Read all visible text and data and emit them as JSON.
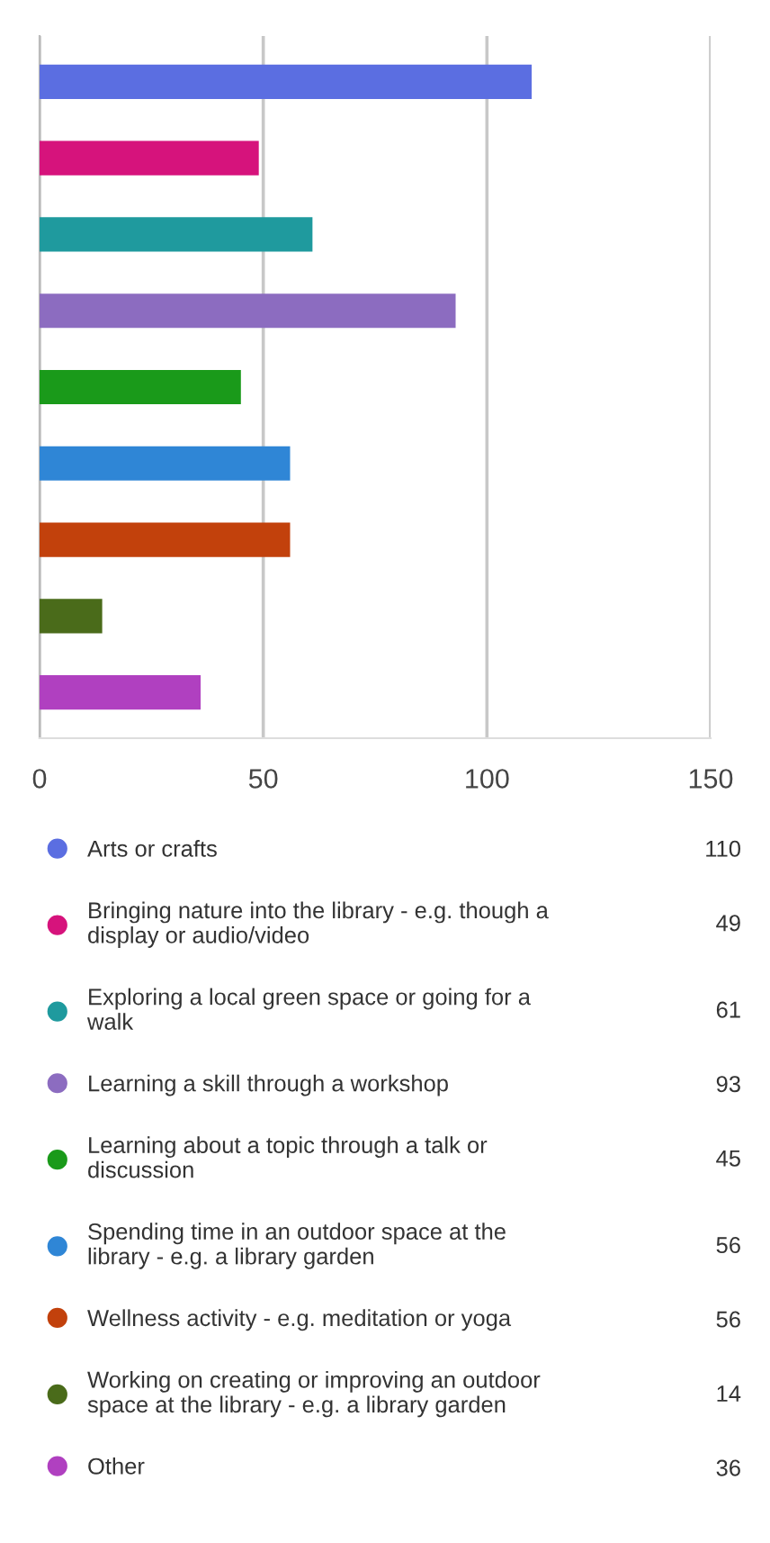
{
  "chart_data": {
    "type": "bar",
    "orientation": "horizontal",
    "stacked": true,
    "categories": [
      null,
      null,
      null,
      null,
      null,
      null,
      null,
      null,
      null
    ],
    "series": [
      {
        "name": "Arts or crafts",
        "color": "#5b6ee1",
        "values": [
          110,
          null,
          null,
          null,
          null,
          null,
          null,
          null,
          null
        ]
      },
      {
        "name": "Bringing nature into the library - e.g. though a display or audio/video",
        "color": "#d6137c",
        "values": [
          null,
          49,
          null,
          null,
          null,
          null,
          null,
          null,
          null
        ]
      },
      {
        "name": "Exploring a local green space or going for a walk",
        "color": "#1f9a9e",
        "values": [
          null,
          null,
          61,
          null,
          null,
          null,
          null,
          null,
          null
        ]
      },
      {
        "name": "Learning a skill through a workshop",
        "color": "#8c6cc0",
        "values": [
          null,
          null,
          null,
          93,
          null,
          null,
          null,
          null,
          null
        ]
      },
      {
        "name": "Learning about a topic through a talk or discussion",
        "color": "#1a9a1a",
        "values": [
          null,
          null,
          null,
          null,
          45,
          null,
          null,
          null,
          null
        ]
      },
      {
        "name": "Spending time in an outdoor space at the library - e.g. a library garden",
        "color": "#2f86d6",
        "values": [
          null,
          null,
          null,
          null,
          null,
          56,
          null,
          null,
          null
        ]
      },
      {
        "name": "Wellness activity - e.g. meditation or yoga",
        "color": "#c2410c",
        "values": [
          null,
          null,
          null,
          null,
          null,
          null,
          56,
          null,
          null
        ]
      },
      {
        "name": "Working on creating or improving an outdoor space at the library - e.g. a library garden",
        "color": "#4a6b1a",
        "values": [
          null,
          null,
          null,
          null,
          null,
          null,
          null,
          14,
          null
        ]
      },
      {
        "name": "Other",
        "color": "#b040c0",
        "values": [
          null,
          null,
          null,
          null,
          null,
          null,
          null,
          null,
          36
        ]
      }
    ],
    "annotations": [
      "110",
      "49",
      "61",
      "93",
      "45",
      "56",
      "56",
      "14",
      "36"
    ],
    "xlim": [
      0,
      150
    ],
    "xticks": [
      0,
      50,
      100,
      150
    ],
    "grid": "x",
    "tick_labels": "x",
    "legend": "bottom"
  }
}
